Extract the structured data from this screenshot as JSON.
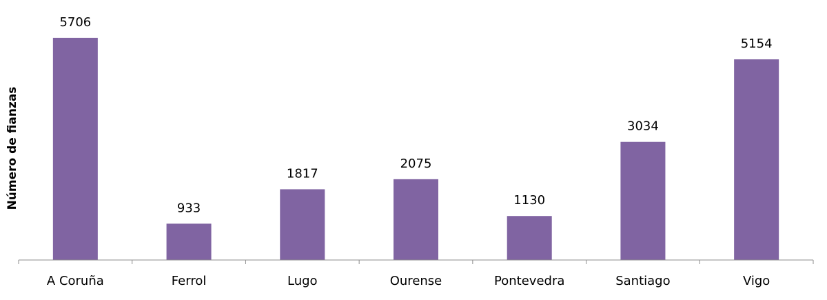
{
  "chart_data": {
    "type": "bar",
    "y_label": "Número de fianzas",
    "categories": [
      "A Coruña",
      "Ferrol",
      "Lugo",
      "Ourense",
      "Pontevedra",
      "Santiago",
      "Vigo"
    ],
    "values": [
      5706,
      933,
      1817,
      2075,
      1130,
      3034,
      5154
    ],
    "color": "#8064a2",
    "ylim": [
      0,
      6000
    ]
  }
}
